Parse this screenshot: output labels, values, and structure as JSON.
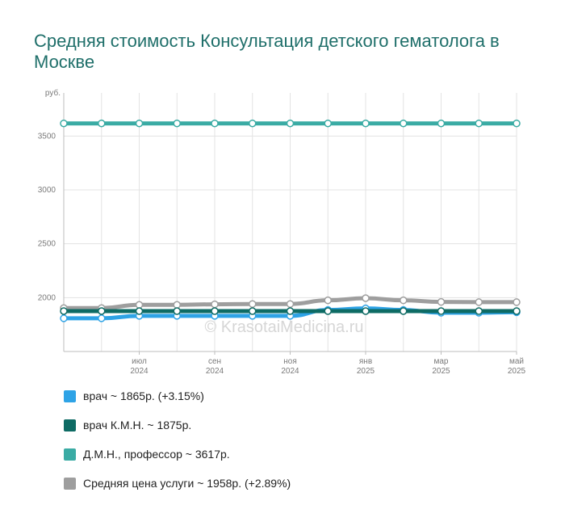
{
  "title": "Средняя стоимость Консультация детского гематолога в Москве",
  "watermark": "© KrasotaiMedicina.ru",
  "chart_data": {
    "type": "line",
    "y_unit": "руб.",
    "ylim": [
      1500,
      3900
    ],
    "y_ticks": [
      2000,
      2500,
      3000,
      3500
    ],
    "x": [
      "2024-05",
      "2024-06",
      "2024-07",
      "2024-08",
      "2024-09",
      "2024-10",
      "2024-11",
      "2024-12",
      "2025-01",
      "2025-02",
      "2025-03",
      "2025-04",
      "2025-05"
    ],
    "x_tick_labels": [
      {
        "x": "2024-07",
        "line1": "июл",
        "line2": "2024"
      },
      {
        "x": "2024-09",
        "line1": "сен",
        "line2": "2024"
      },
      {
        "x": "2024-11",
        "line1": "ноя",
        "line2": "2024"
      },
      {
        "x": "2025-01",
        "line1": "янв",
        "line2": "2025"
      },
      {
        "x": "2025-03",
        "line1": "мар",
        "line2": "2025"
      },
      {
        "x": "2025-05",
        "line1": "май",
        "line2": "2025"
      }
    ],
    "grid": true,
    "legend_position": "bottom",
    "series": [
      {
        "key": "vrach",
        "color": "#2ea3e6",
        "values": [
          1808,
          1808,
          1831,
          1831,
          1831,
          1831,
          1831,
          1885,
          1900,
          1885,
          1860,
          1860,
          1865
        ]
      },
      {
        "key": "kmn",
        "color": "#0e6b64",
        "values": [
          1875,
          1875,
          1875,
          1875,
          1875,
          1875,
          1875,
          1875,
          1875,
          1875,
          1875,
          1875,
          1875
        ]
      },
      {
        "key": "dmn",
        "color": "#3aaba4",
        "values": [
          3617,
          3617,
          3617,
          3617,
          3617,
          3617,
          3617,
          3617,
          3617,
          3617,
          3617,
          3617,
          3617
        ]
      },
      {
        "key": "avg",
        "color": "#9e9e9e",
        "values": [
          1903,
          1903,
          1933,
          1933,
          1938,
          1941,
          1941,
          1975,
          1995,
          1975,
          1960,
          1958,
          1958
        ]
      }
    ]
  },
  "legend": [
    {
      "label": "врач ~ 1865р. (+3.15%)",
      "color": "#2ea3e6"
    },
    {
      "label": "врач К.М.Н. ~ 1875р.",
      "color": "#0e6b64"
    },
    {
      "label": "Д.М.Н., профессор ~ 3617р.",
      "color": "#3aaba4"
    },
    {
      "label": "Средняя цена услуги ~ 1958р. (+2.89%)",
      "color": "#9e9e9e"
    }
  ]
}
